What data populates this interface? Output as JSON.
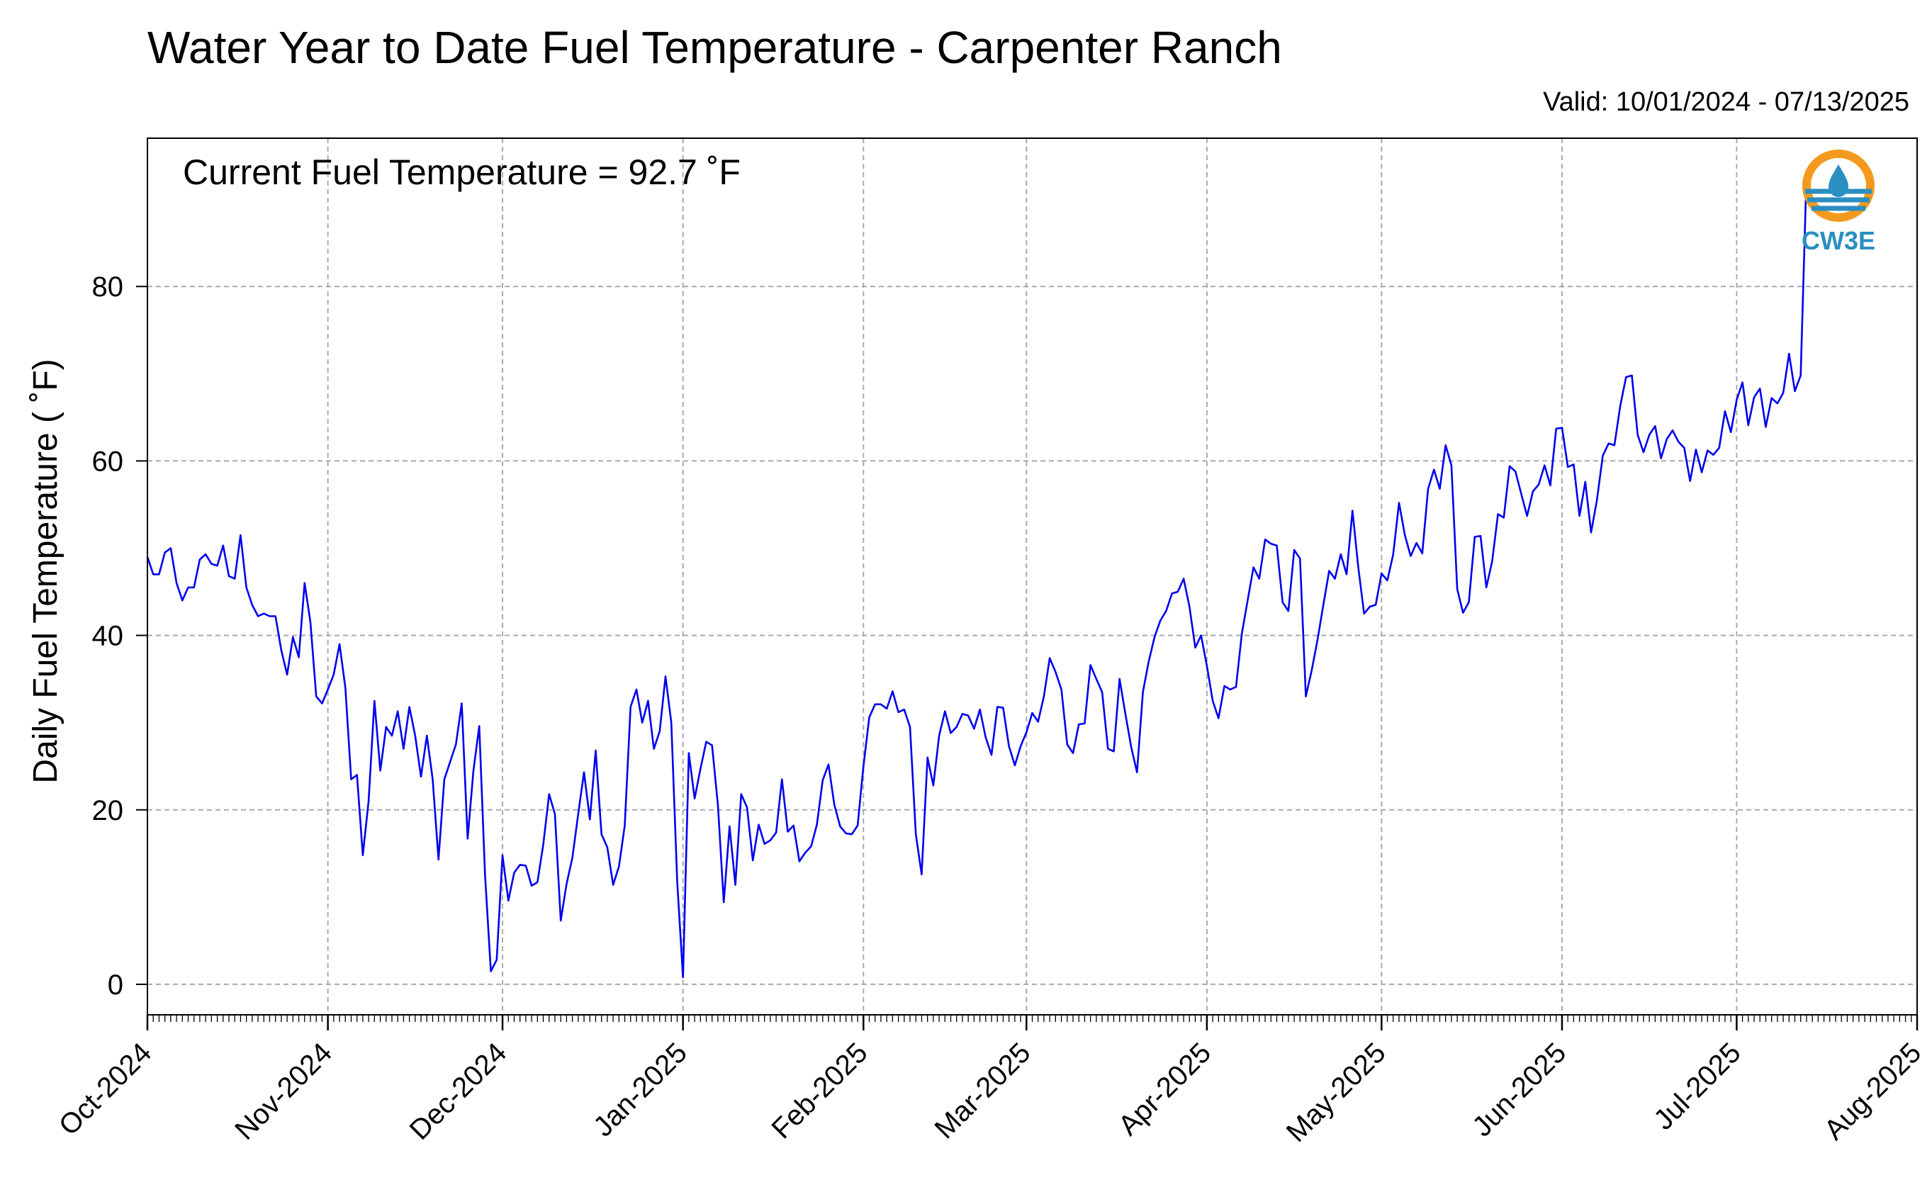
{
  "chart_title": "Water Year to Date Fuel Temperature - Carpenter Ranch",
  "valid_range": "Valid: 10/01/2024 - 07/13/2025",
  "annotation": "Current Fuel Temperature = 92.7 ˚F",
  "logo": {
    "text": "CW3E",
    "ring_color": "#f39a1e",
    "wave_color": "#2a8fc1",
    "text_color": "#2a8fc1"
  },
  "chart_data": {
    "type": "line",
    "title": "Water Year to Date Fuel Temperature - Carpenter Ranch",
    "ylabel": "Daily Fuel Temperature ( ˚F)",
    "xlabel": "",
    "x_range": [
      "2024-10-01",
      "2025-08-01"
    ],
    "ylim": [
      -3.5,
      97
    ],
    "yticks": [
      0,
      20,
      40,
      60,
      80
    ],
    "xticks": [
      "Oct-2024",
      "Nov-2024",
      "Dec-2024",
      "Jan-2025",
      "Feb-2025",
      "Mar-2025",
      "Apr-2025",
      "May-2025",
      "Jun-2025",
      "Jul-2025",
      "Aug-2025"
    ],
    "grid": true,
    "line_color": "#0000ee",
    "series": [
      {
        "start_date": "2024-10-01",
        "step": "1 day",
        "values": [
          49,
          47,
          47,
          49.5,
          50,
          46,
          44,
          45.5,
          45.5,
          48.7,
          49.3,
          48.2,
          48,
          50.3,
          46.8,
          46.5,
          51.5,
          45.5,
          43.5,
          42.2,
          42.5,
          42.2,
          42.2,
          38.3,
          35.5,
          39.8,
          37.5,
          46,
          41.5,
          33,
          32.2,
          33.8,
          35.5,
          39,
          34,
          23.5,
          24,
          14.8,
          21,
          32.5,
          24.5,
          29.5,
          28.5,
          31.3,
          27,
          31.8,
          28.5,
          23.8,
          28.5,
          23.5,
          14.3,
          23.5,
          25.5,
          27.5,
          32.2,
          16.7,
          24.5,
          29.6,
          12.5,
          1.5,
          2.8,
          14.8,
          9.6,
          12.8,
          13.7,
          13.6,
          11.3,
          11.7,
          16,
          21.8,
          19.5,
          7.3,
          11.5,
          14.5,
          19.5,
          24.3,
          18.9,
          26.8,
          17.2,
          15.7,
          11.4,
          13.5,
          18.2,
          31.8,
          33.8,
          30,
          32.5,
          27,
          29,
          35.3,
          30,
          11.8,
          0.8,
          26.5,
          21.3,
          24.7,
          27.8,
          27.4,
          20.5,
          9.4,
          18.1,
          11.4,
          21.8,
          20.3,
          14.2,
          18.3,
          16.1,
          16.5,
          17.4,
          23.5,
          17.5,
          18.2,
          14.1,
          15.1,
          15.8,
          18.3,
          23.4,
          25.2,
          20.6,
          18.1,
          17.3,
          17.2,
          18.2,
          25,
          30.6,
          32.1,
          32.1,
          31.6,
          33.6,
          31.2,
          31.5,
          29.5,
          17.2,
          12.6,
          26,
          22.8,
          28.5,
          31.3,
          28.8,
          29.5,
          31,
          30.8,
          29.3,
          31.5,
          28.3,
          26.3,
          31.8,
          31.7,
          27.3,
          25.1,
          27.3,
          28.9,
          31.1,
          30.1,
          33,
          37.4,
          35.8,
          33.8,
          27.5,
          26.5,
          29.8,
          29.9,
          36.6,
          35,
          33.5,
          27,
          26.7,
          35,
          31,
          27.2,
          24.3,
          33.5,
          37,
          39.8,
          41.7,
          42.8,
          44.8,
          45,
          46.5,
          43.3,
          38.6,
          40,
          36.5,
          32.5,
          30.5,
          34.2,
          33.8,
          34.1,
          40.2,
          44,
          47.8,
          46.5,
          51,
          50.5,
          50.3,
          43.8,
          42.8,
          49.8,
          48.8,
          33,
          36,
          39.5,
          43.5,
          47.4,
          46.5,
          49.3,
          47,
          54.3,
          47.8,
          42.5,
          43.3,
          43.5,
          47.1,
          46.3,
          49.3,
          55.2,
          51.5,
          49.1,
          50.6,
          49.4,
          56.8,
          59,
          56.8,
          61.8,
          59.5,
          45.3,
          42.6,
          43.8,
          51.3,
          51.4,
          45.5,
          48.5,
          53.9,
          53.5,
          59.4,
          58.8,
          56.2,
          53.7,
          56.5,
          57.3,
          59.5,
          57.2,
          63.7,
          63.8,
          59.3,
          59.6,
          53.7,
          57.6,
          51.8,
          55.5,
          60.6,
          62,
          61.8,
          66.3,
          69.6,
          69.8,
          63,
          61,
          63,
          64,
          60.3,
          62.5,
          63.5,
          62.2,
          61.5,
          57.7,
          61.3,
          58.7,
          61.2,
          60.7,
          61.5,
          65.7,
          63.3,
          67,
          69,
          64.1,
          67.3,
          68.3,
          63.9,
          67.2,
          66.6,
          67.8,
          72.3,
          68,
          69.8,
          92.7
        ]
      }
    ]
  }
}
